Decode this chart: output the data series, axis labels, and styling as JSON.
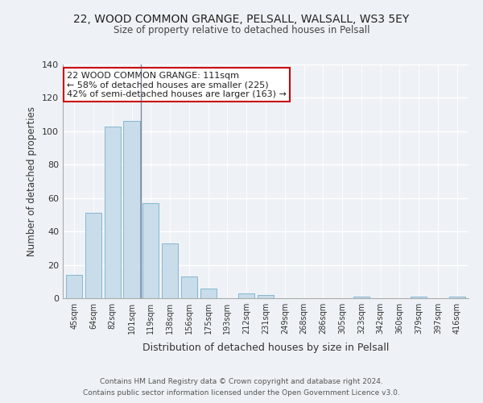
{
  "title": "22, WOOD COMMON GRANGE, PELSALL, WALSALL, WS3 5EY",
  "subtitle": "Size of property relative to detached houses in Pelsall",
  "xlabel": "Distribution of detached houses by size in Pelsall",
  "ylabel": "Number of detached properties",
  "bar_labels": [
    "45sqm",
    "64sqm",
    "82sqm",
    "101sqm",
    "119sqm",
    "138sqm",
    "156sqm",
    "175sqm",
    "193sqm",
    "212sqm",
    "231sqm",
    "249sqm",
    "268sqm",
    "286sqm",
    "305sqm",
    "323sqm",
    "342sqm",
    "360sqm",
    "379sqm",
    "397sqm",
    "416sqm"
  ],
  "bar_values": [
    14,
    51,
    103,
    106,
    57,
    33,
    13,
    6,
    0,
    3,
    2,
    0,
    0,
    0,
    0,
    1,
    0,
    0,
    1,
    0,
    1
  ],
  "bar_color": "#c8dcea",
  "bar_edge_color": "#7aaecc",
  "ylim": [
    0,
    140
  ],
  "yticks": [
    0,
    20,
    40,
    60,
    80,
    100,
    120,
    140
  ],
  "annotation_title": "22 WOOD COMMON GRANGE: 111sqm",
  "annotation_line1": "← 58% of detached houses are smaller (225)",
  "annotation_line2": "42% of semi-detached houses are larger (163) →",
  "annotation_box_color": "#ffffff",
  "annotation_box_edge": "#cc0000",
  "vline_x_index": 3.5,
  "footer_line1": "Contains HM Land Registry data © Crown copyright and database right 2024.",
  "footer_line2": "Contains public sector information licensed under the Open Government Licence v3.0.",
  "background_color": "#eef2f6",
  "plot_background": "#eef2f6",
  "grid_color": "#ffffff"
}
